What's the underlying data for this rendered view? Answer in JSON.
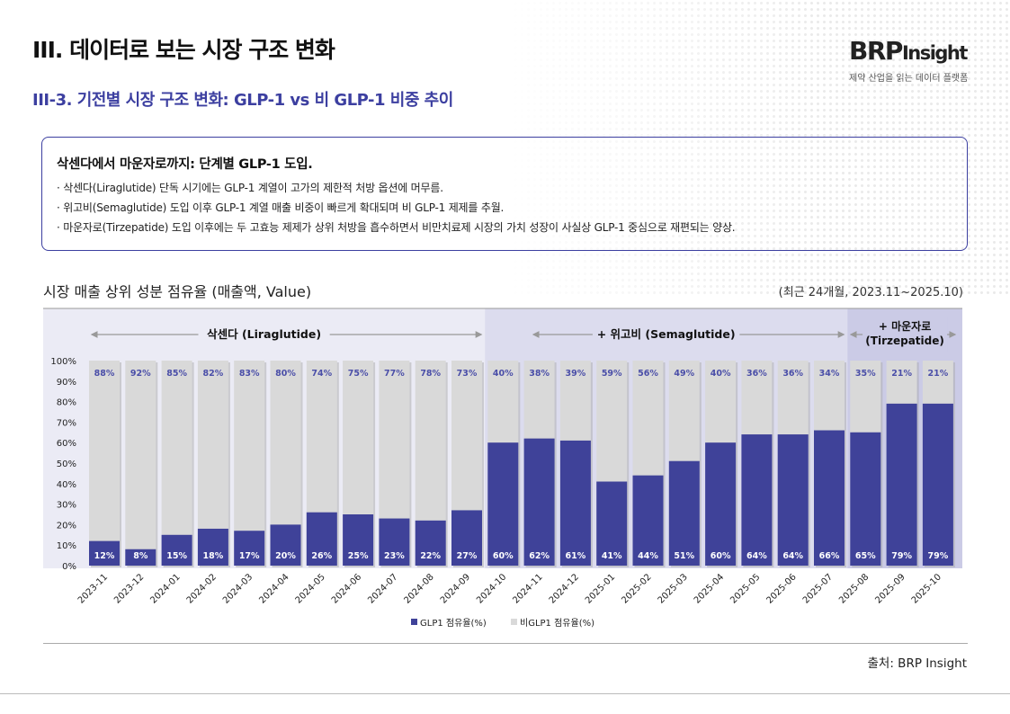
{
  "header": {
    "section_title": "III. 데이터로 보는 시장 구조 변화",
    "subtitle": "III-3. 기전별 시장 구조 변화: GLP-1 vs 비 GLP-1 비중 추이",
    "logo_main": "BRP",
    "logo_suffix": "Insight",
    "logo_tagline": "제약 산업을 읽는 데이터 플랫폼"
  },
  "summary": {
    "title": "삭센다에서 마운자로까지: 단계별 GLP-1 도입.",
    "bullets": [
      "· 삭센다(Liraglutide) 단독 시기에는 GLP-1 계열이 고가의 제한적 처방 옵션에 머무름.",
      "· 위고비(Semaglutide) 도입 이후 GLP-1 계열 매출 비중이 빠르게 확대되며 비 GLP-1 제제를 추월.",
      "· 마운자로(Tirzepatide) 도입 이후에는 두 고효능 제제가 상위 처방을 흡수하면서 비만치료제 시장의 가치 성장이 사실상 GLP-1 중심으로 재편되는 양상."
    ]
  },
  "chart_title": "시장 매출 상위 성분 점유율 (매출액, Value)",
  "period": "(최근 24개월, 2023.11~2025.10)",
  "source": "출처: BRP Insight",
  "chart_data": {
    "type": "bar",
    "stacked": true,
    "grid": false,
    "legend_position": "bottom",
    "categories": [
      "2023-11",
      "2023-12",
      "2024-01",
      "2024-02",
      "2024-03",
      "2024-04",
      "2024-05",
      "2024-06",
      "2024-07",
      "2024-08",
      "2024-09",
      "2024-10",
      "2024-11",
      "2024-12",
      "2025-01",
      "2025-02",
      "2025-03",
      "2025-04",
      "2025-05",
      "2025-06",
      "2025-07",
      "2025-08",
      "2025-09",
      "2025-10"
    ],
    "series": [
      {
        "name": "GLP1 점유율(%)",
        "color": "#3f4299",
        "values": [
          12,
          8,
          15,
          18,
          17,
          20,
          26,
          25,
          23,
          22,
          27,
          60,
          62,
          61,
          41,
          44,
          51,
          60,
          64,
          64,
          66,
          65,
          79,
          79
        ]
      },
      {
        "name": "비GLP1 점유율(%)",
        "color": "#d9d9d9",
        "values": [
          88,
          92,
          85,
          82,
          83,
          80,
          74,
          75,
          77,
          78,
          73,
          40,
          38,
          39,
          59,
          56,
          49,
          40,
          36,
          36,
          34,
          35,
          21,
          21
        ]
      }
    ],
    "ylim": [
      0,
      100
    ],
    "yticks": [
      "0%",
      "10%",
      "20%",
      "30%",
      "40%",
      "50%",
      "60%",
      "70%",
      "80%",
      "90%",
      "100%"
    ],
    "phases": [
      {
        "label": "삭센다 (Liraglutide)",
        "start": "2023-11",
        "end": "2024-09",
        "color": "#ebebf5"
      },
      {
        "label": "+ 위고비 (Semaglutide)",
        "start": "2024-10",
        "end": "2025-07",
        "color": "#dcdcee"
      },
      {
        "label_lines": [
          "+ 마운자로",
          "(Tirzepatide)"
        ],
        "start": "2025-08",
        "end": "2025-10",
        "color": "#cbcbe6"
      }
    ]
  }
}
